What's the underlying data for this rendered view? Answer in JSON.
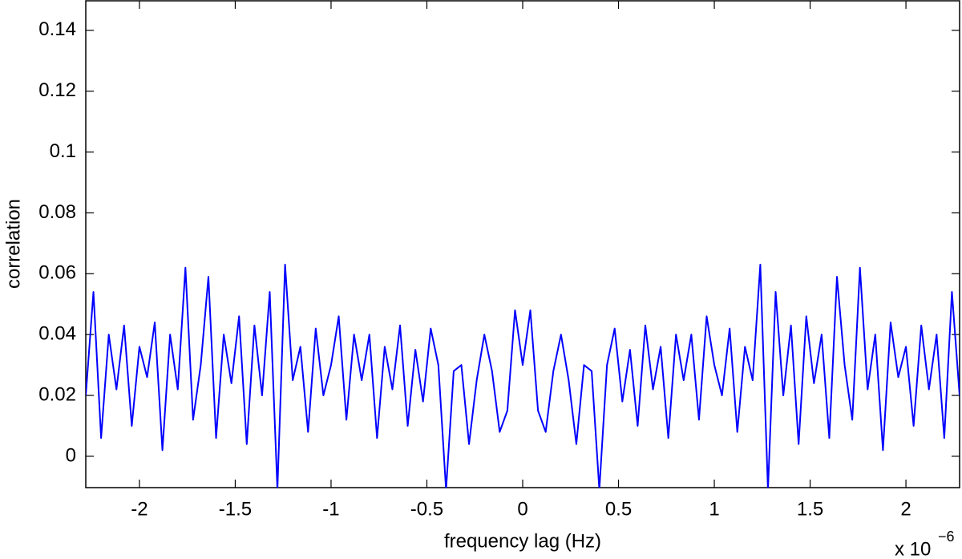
{
  "chart_data": {
    "type": "line",
    "xlabel": "frequency lag (Hz)",
    "ylabel": "correlation",
    "x_scale_label": "x 10",
    "x_scale_exponent": "−6",
    "color": "#0000ff",
    "xlim": [
      -2.28,
      2.28
    ],
    "xticks": [
      -2,
      -1.5,
      -1,
      -0.5,
      0,
      0.5,
      1,
      1.5,
      2
    ],
    "ylim": [
      -0.0103,
      0.1497
    ],
    "yticks": [
      0,
      0.02,
      0.04,
      0.06,
      0.08,
      0.1,
      0.12,
      0.14
    ],
    "grid": false,
    "x": [
      -2.28,
      -2.24,
      -2.2,
      -2.16,
      -2.12,
      -2.08,
      -2.04,
      -2,
      -1.96,
      -1.92,
      -1.88,
      -1.84,
      -1.8,
      -1.76,
      -1.72,
      -1.68,
      -1.64,
      -1.6,
      -1.56,
      -1.52,
      -1.48,
      -1.44,
      -1.4,
      -1.36,
      -1.32,
      -1.28,
      -1.24,
      -1.2,
      -1.16,
      -1.12,
      -1.08,
      -1.04,
      -1,
      -0.96,
      -0.92,
      -0.88,
      -0.84,
      -0.8,
      -0.76,
      -0.72,
      -0.68,
      -0.64,
      -0.6,
      -0.56,
      -0.52,
      -0.48,
      -0.44,
      -0.4,
      -0.36,
      -0.32,
      -0.28,
      -0.24,
      -0.2,
      -0.16,
      -0.12,
      -0.08,
      -0.04,
      0,
      0.04,
      0.08,
      0.12,
      0.16,
      0.2,
      0.24,
      0.28,
      0.32,
      0.36,
      0.4,
      0.44,
      0.48,
      0.52,
      0.56,
      0.6,
      0.64,
      0.68,
      0.72,
      0.76,
      0.8,
      0.84,
      0.88,
      0.92,
      0.96,
      1,
      1.04,
      1.08,
      1.12,
      1.16,
      1.2,
      1.24,
      1.28,
      1.32,
      1.36,
      1.4,
      1.44,
      1.48,
      1.52,
      1.56,
      1.6,
      1.64,
      1.68,
      1.72,
      1.76,
      1.8,
      1.84,
      1.88,
      1.92,
      1.96,
      2,
      2.04,
      2.08,
      2.12,
      2.16,
      2.2,
      2.24,
      2.28
    ],
    "values": [
      0.02,
      0.054,
      0.006,
      0.04,
      0.022,
      0.043,
      0.01,
      0.036,
      0.026,
      0.044,
      0.002,
      0.04,
      0.022,
      0.062,
      0.012,
      0.03,
      0.059,
      0.006,
      0.04,
      0.024,
      0.046,
      0.004,
      0.043,
      0.02,
      0.054,
      -0.011,
      0.063,
      0.025,
      0.036,
      0.008,
      0.042,
      0.02,
      0.03,
      0.046,
      0.012,
      0.04,
      0.025,
      0.04,
      0.006,
      0.036,
      0.022,
      0.043,
      0.01,
      0.035,
      0.018,
      0.042,
      0.03,
      -0.011,
      0.028,
      0.03,
      0.004,
      0.025,
      0.04,
      0.028,
      0.008,
      0.015,
      0.048,
      0.03,
      0.048,
      0.015,
      0.008,
      0.028,
      0.04,
      0.025,
      0.004,
      0.03,
      0.028,
      -0.011,
      0.03,
      0.042,
      0.018,
      0.035,
      0.01,
      0.043,
      0.022,
      0.036,
      0.006,
      0.04,
      0.025,
      0.04,
      0.012,
      0.046,
      0.03,
      0.02,
      0.042,
      0.008,
      0.036,
      0.025,
      0.063,
      -0.011,
      0.054,
      0.02,
      0.043,
      0.004,
      0.046,
      0.024,
      0.04,
      0.006,
      0.059,
      0.03,
      0.012,
      0.062,
      0.022,
      0.04,
      0.002,
      0.044,
      0.026,
      0.036,
      0.01,
      0.043,
      0.022,
      0.04,
      0.006,
      0.054,
      0.02
    ]
  }
}
